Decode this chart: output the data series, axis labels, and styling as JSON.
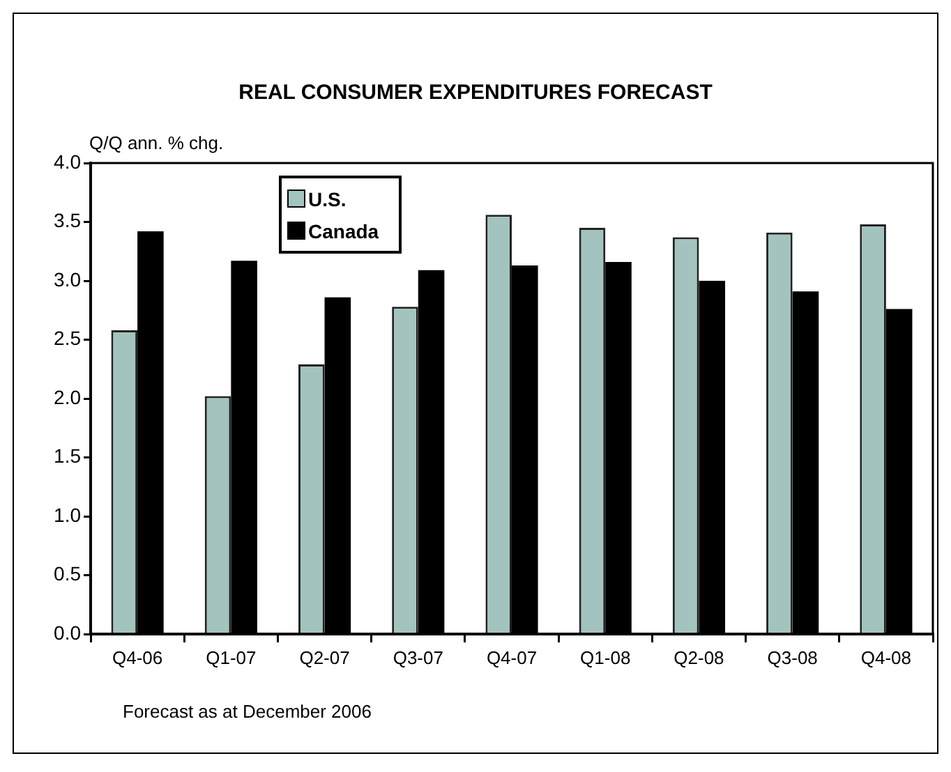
{
  "chart_data": {
    "type": "bar",
    "title": "REAL CONSUMER EXPENDITURES FORECAST",
    "ylabel": "Q/Q ann. % chg.",
    "categories": [
      "Q4-06",
      "Q1-07",
      "Q2-07",
      "Q3-07",
      "Q4-07",
      "Q1-08",
      "Q2-08",
      "Q3-08",
      "Q4-08"
    ],
    "series": [
      {
        "name": "U.S.",
        "color": "#a3c4be",
        "values": [
          2.58,
          2.02,
          2.29,
          2.78,
          3.56,
          3.45,
          3.37,
          3.41,
          3.48
        ]
      },
      {
        "name": "Canada",
        "color": "#000000",
        "values": [
          3.42,
          3.17,
          2.86,
          3.09,
          3.13,
          3.16,
          3.0,
          2.91,
          2.76
        ]
      }
    ],
    "ylim": [
      0,
      4
    ],
    "yticks": [
      {
        "value": 0,
        "label": "0.0"
      },
      {
        "value": 0.5,
        "label": "0.5"
      },
      {
        "value": 1,
        "label": "1.0"
      },
      {
        "value": 1.5,
        "label": "1.5"
      },
      {
        "value": 2,
        "label": "2.0"
      },
      {
        "value": 2.5,
        "label": "2.5"
      },
      {
        "value": 3,
        "label": "3.0"
      },
      {
        "value": 3.5,
        "label": "3.5"
      },
      {
        "value": 4,
        "label": "4.0"
      }
    ],
    "grid": false,
    "legend": "top left",
    "annotations": [
      "Forecast as at December 2006"
    ]
  }
}
